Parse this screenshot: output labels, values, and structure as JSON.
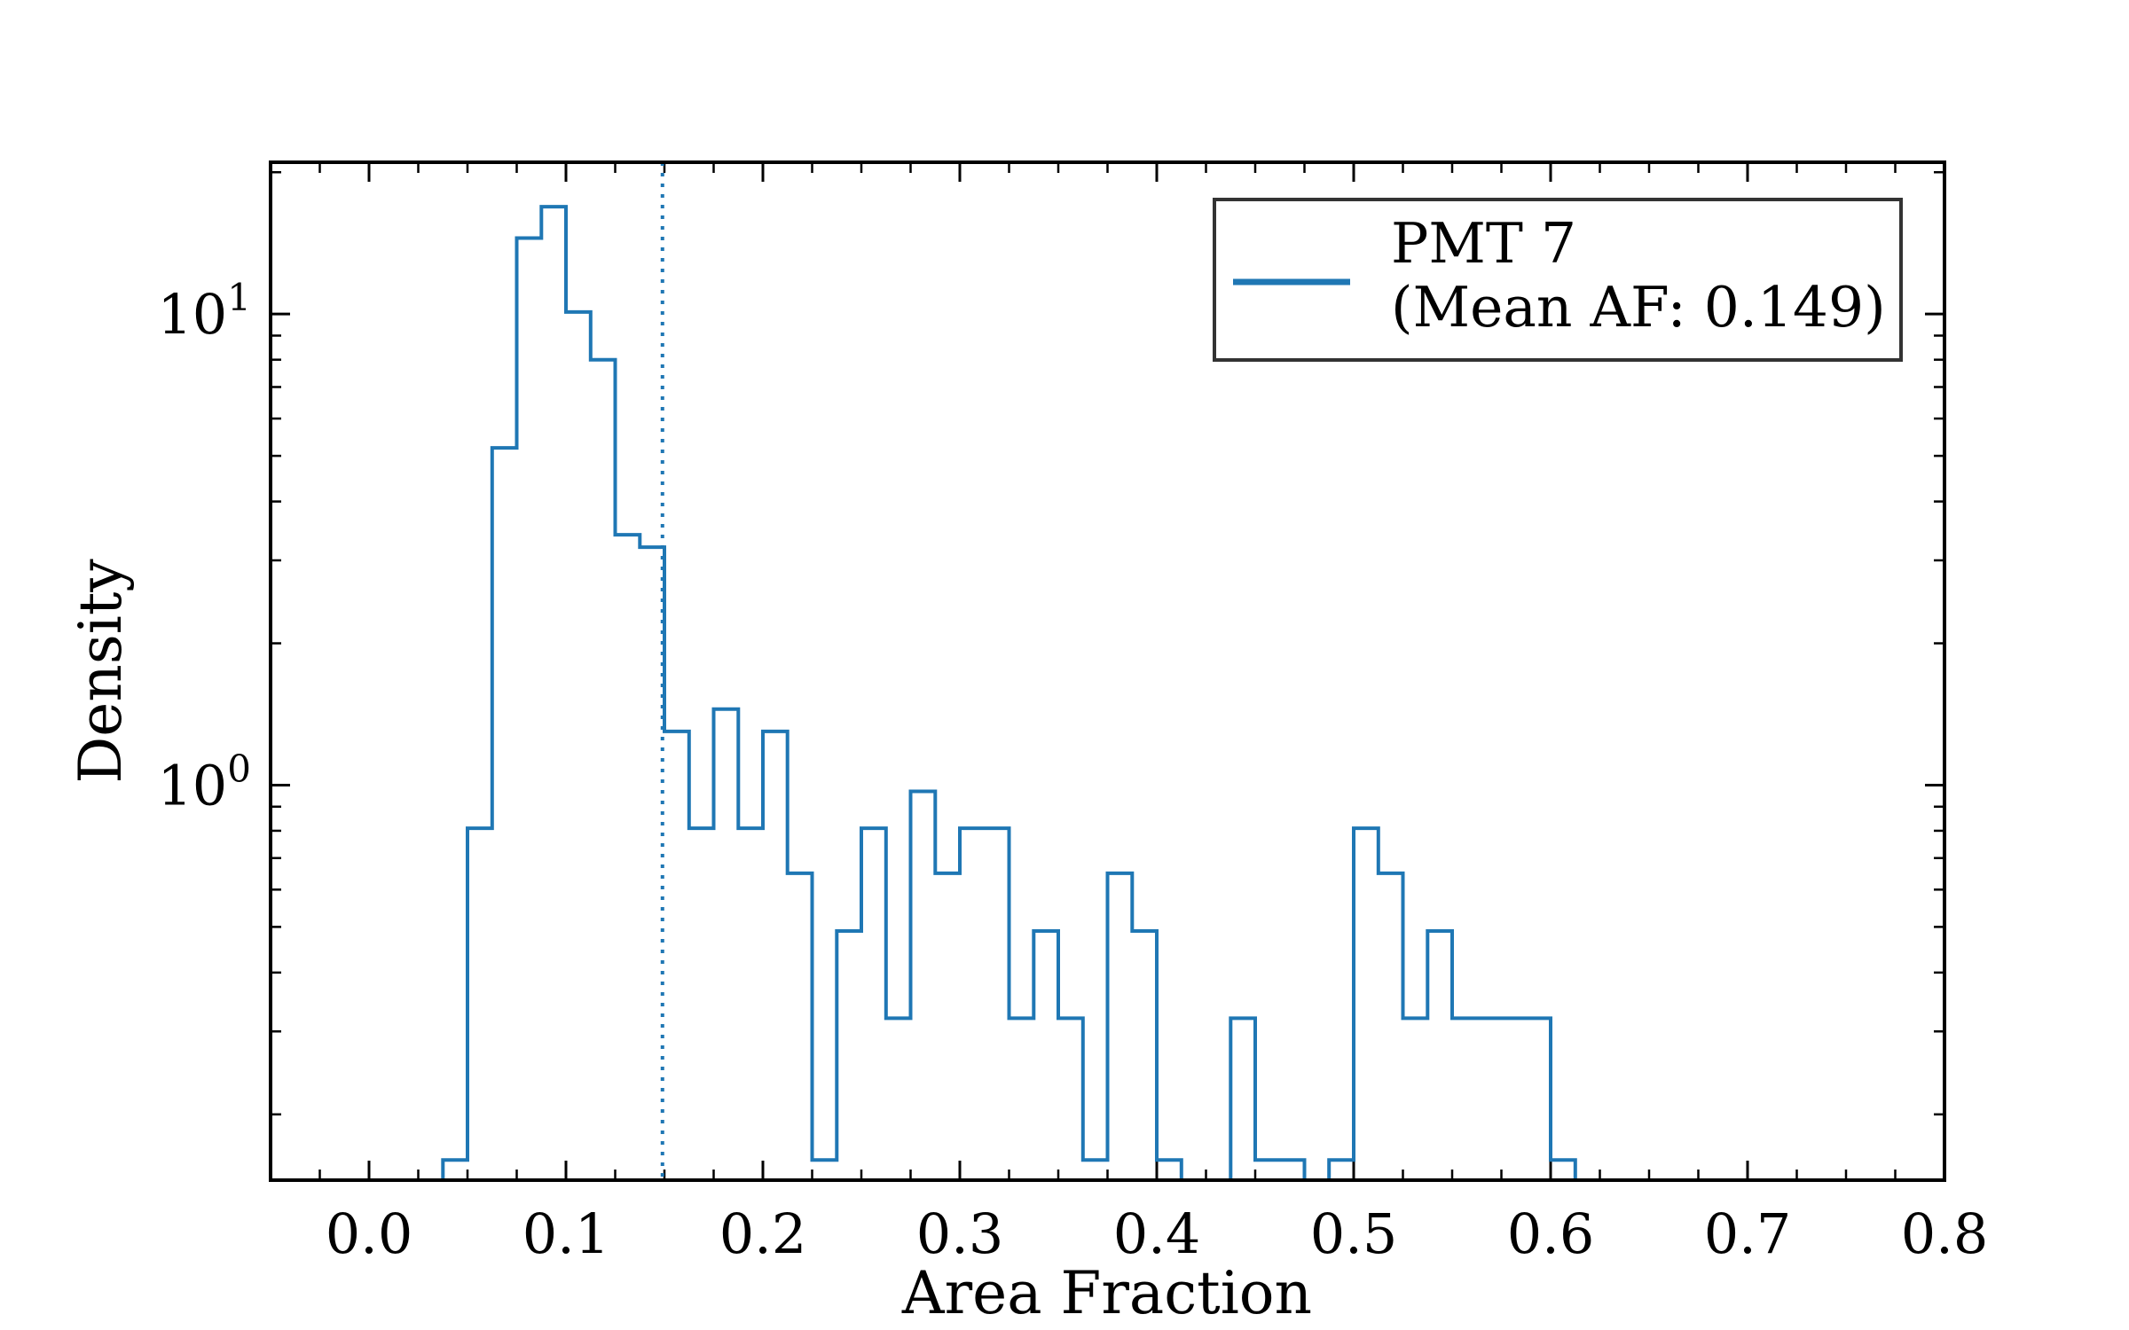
{
  "chart_data": {
    "type": "histogram",
    "xlabel": "Area Fraction",
    "ylabel": "Density",
    "xlim": [
      -0.05,
      0.8
    ],
    "ylim": [
      0.145,
      21
    ],
    "yscale": "log",
    "x_ticks": [
      "0.0",
      "0.1",
      "0.2",
      "0.3",
      "0.4",
      "0.5",
      "0.6",
      "0.7",
      "0.8"
    ],
    "y_ticks": [
      {
        "base": "10",
        "exp": "0",
        "value": 1
      },
      {
        "base": "10",
        "exp": "1",
        "value": 10
      }
    ],
    "color": "#1f77b4",
    "bin_width": 0.0125,
    "bin_start": 0.0375,
    "series": [
      {
        "name": "PMT 7",
        "label_line2": "(Mean AF: 0.149)",
        "values": [
          0.16,
          0.81,
          5.2,
          14.5,
          16.9,
          10.1,
          8.0,
          3.4,
          3.2,
          1.3,
          0.81,
          1.45,
          0.81,
          1.3,
          0.65,
          0.16,
          0.49,
          0.81,
          0.32,
          0.97,
          0.65,
          0.81,
          0.81,
          0.32,
          0.49,
          0.32,
          0.16,
          0.65,
          0.49,
          0.16,
          0,
          0,
          0.32,
          0.16,
          0.16,
          0,
          0.16,
          0.81,
          0.65,
          0.32,
          0.49,
          0.32,
          0.32,
          0.32,
          0.32,
          0.16
        ]
      }
    ],
    "mean_line": {
      "x": 0.149,
      "style": "dotted"
    },
    "legend_position": "top-right",
    "grid": false
  }
}
